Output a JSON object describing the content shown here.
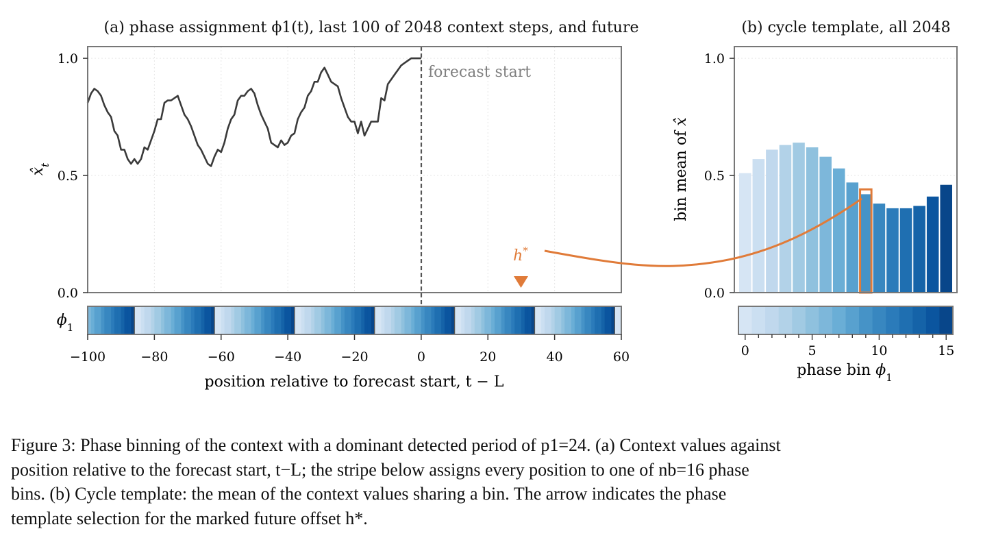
{
  "chart_data": [
    {
      "id": "a",
      "type": "line",
      "title": "(a) phase assignment ϕ1(t), last 100 of 2048 context steps, and future",
      "ylabel": "x̂t",
      "xlabel": "position relative to forecast start, t − L",
      "xlim": [
        -100,
        60
      ],
      "ylim": [
        0.0,
        1.05
      ],
      "xticks": [
        -100,
        -80,
        -60,
        -40,
        -20,
        0,
        20,
        40,
        60
      ],
      "xtick_labels": [
        "−100",
        "−80",
        "−60",
        "−40",
        "−20",
        "0",
        "20",
        "40",
        "60"
      ],
      "yticks": [
        0.0,
        0.5,
        1.0
      ],
      "ytick_labels": [
        "0.0",
        "0.5",
        "1.0"
      ],
      "grid": true,
      "annotations": {
        "forecast_start_label": "forecast start",
        "forecast_start_x": 0,
        "marker_label": "h*",
        "marker_x": 30
      },
      "series": [
        {
          "x": [
            -100,
            -99,
            -98,
            -97,
            -96,
            -95,
            -94,
            -93,
            -92,
            -91,
            -90,
            -89,
            -88,
            -87,
            -86,
            -85,
            -84,
            -83,
            -82,
            -81,
            -80,
            -79,
            -78,
            -77,
            -76,
            -75,
            -74,
            -73,
            -72,
            -71,
            -70,
            -69,
            -68,
            -67,
            -66,
            -65,
            -64,
            -63,
            -62,
            -61,
            -60,
            -59,
            -58,
            -57,
            -56,
            -55,
            -54,
            -53,
            -52,
            -51,
            -50,
            -49,
            -48,
            -47,
            -46,
            -45,
            -44,
            -43,
            -42,
            -41,
            -40,
            -39,
            -38,
            -37,
            -36,
            -35,
            -34,
            -33,
            -32,
            -31,
            -30,
            -29,
            -28,
            -27,
            -26,
            -25,
            -24,
            -23,
            -22,
            -21,
            -20,
            -19,
            -18,
            -17,
            -16,
            -15,
            -14,
            -13,
            -12,
            -11,
            -10,
            -9,
            -8,
            -7,
            -6,
            -5,
            -4,
            -3,
            -2,
            -1,
            0
          ],
          "values": [
            0.81,
            0.85,
            0.87,
            0.86,
            0.84,
            0.8,
            0.77,
            0.75,
            0.69,
            0.67,
            0.61,
            0.61,
            0.57,
            0.55,
            0.57,
            0.55,
            0.57,
            0.62,
            0.61,
            0.65,
            0.69,
            0.74,
            0.74,
            0.81,
            0.82,
            0.82,
            0.83,
            0.84,
            0.8,
            0.76,
            0.74,
            0.71,
            0.67,
            0.63,
            0.61,
            0.58,
            0.55,
            0.54,
            0.58,
            0.61,
            0.6,
            0.64,
            0.7,
            0.74,
            0.76,
            0.82,
            0.84,
            0.84,
            0.86,
            0.87,
            0.85,
            0.8,
            0.76,
            0.73,
            0.7,
            0.64,
            0.63,
            0.62,
            0.65,
            0.63,
            0.64,
            0.67,
            0.68,
            0.74,
            0.77,
            0.79,
            0.84,
            0.86,
            0.9,
            0.9,
            0.94,
            0.96,
            0.93,
            0.9,
            0.89,
            0.88,
            0.83,
            0.79,
            0.75,
            0.73,
            0.73,
            0.68,
            0.73,
            0.67,
            0.7,
            0.73,
            0.73,
            0.73,
            0.83,
            0.82,
            0.89,
            0.91,
            0.93,
            0.95,
            0.97,
            0.98,
            0.99,
            1.0,
            1.0,
            1.0,
            1.0
          ]
        }
      ],
      "phase_stripe": {
        "label": "ϕ1",
        "phase_of_x_start": 10,
        "period": 24,
        "bins": 16
      }
    },
    {
      "id": "b",
      "type": "bar",
      "title": "(b) cycle template, all 2048",
      "ylabel": "bin mean of x̂",
      "xlabel": "phase bin ϕ1",
      "categories": [
        0,
        1,
        2,
        3,
        4,
        5,
        6,
        7,
        8,
        9,
        10,
        11,
        12,
        13,
        14,
        15
      ],
      "values": [
        0.51,
        0.57,
        0.61,
        0.63,
        0.64,
        0.62,
        0.58,
        0.53,
        0.47,
        0.42,
        0.38,
        0.36,
        0.36,
        0.37,
        0.41,
        0.46
      ],
      "ylim": [
        0.0,
        1.05
      ],
      "yticks": [
        0.0,
        0.5,
        1.0
      ],
      "ytick_labels": [
        "0.0",
        "0.5",
        "1.0"
      ],
      "xticks": [
        0,
        5,
        10,
        15
      ],
      "xtick_labels": [
        "0",
        "5",
        "10",
        "15"
      ],
      "highlight_bin": 9,
      "grid": true
    }
  ],
  "colors": {
    "line": "#3a3a3a",
    "accent": "#e07b39",
    "frame": "#777777",
    "blues": [
      "#d6e5f4",
      "#cbdff1",
      "#c0d8ed",
      "#b2d2e8",
      "#a1cae3",
      "#8fc1de",
      "#7db7da",
      "#6aaed6",
      "#58a1cf",
      "#4693c7",
      "#3887c0",
      "#2b7bba",
      "#1f6fb1",
      "#1563a8",
      "#0b559f",
      "#08468a"
    ]
  },
  "caption": {
    "lines": [
      "Figure 3: Phase binning of the context with a dominant detected period of p1=24. (a) Context values against",
      "position relative to the forecast start, t−L; the stripe below assigns every position to one of nb=16 phase",
      "bins. (b) Cycle template: the mean of the context values sharing a bin. The arrow indicates the phase",
      "template selection for the marked future offset h*."
    ]
  }
}
